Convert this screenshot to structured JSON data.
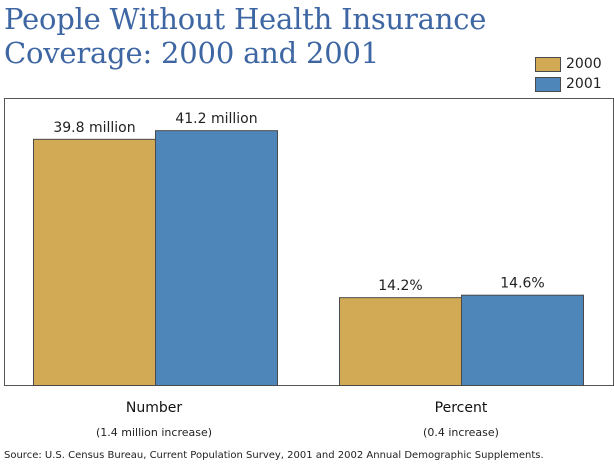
{
  "chart_data": {
    "type": "bar",
    "title_lines": [
      "People Without Health Insurance",
      "Coverage:  2000 and 2001"
    ],
    "groups": [
      {
        "name": "Number",
        "note": "(1.4 million increase)",
        "unit": "million",
        "ylim": [
          0,
          46.4
        ],
        "values": [
          39.8,
          41.2
        ],
        "labels": [
          "39.8 million",
          "41.2 million"
        ]
      },
      {
        "name": "Percent",
        "note": "(0.4 increase)",
        "unit": "percent",
        "ylim": [
          0,
          46.4
        ],
        "values": [
          14.2,
          14.6
        ],
        "labels": [
          "14.2%",
          "14.6%"
        ]
      }
    ],
    "series": [
      {
        "name": "2000",
        "color": "#d2aa55"
      },
      {
        "name": "2001",
        "color": "#4f86ba"
      }
    ],
    "legend_position": "top-right",
    "grid": false
  },
  "source": "Source:  U.S. Census Bureau, Current Population Survey, 2001 and 2002 Annual Demographic Supplements.",
  "colors": {
    "title": "#3d66a3",
    "frame": "#555555",
    "bar_stroke": "#4a4a4a"
  }
}
